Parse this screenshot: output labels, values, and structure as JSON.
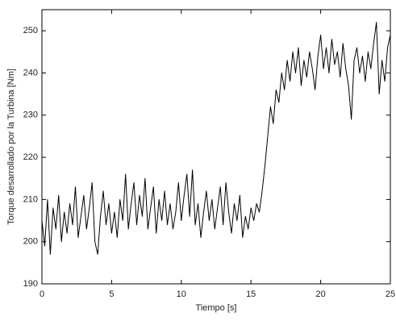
{
  "chart_data": {
    "type": "line",
    "xlabel": "Tiempo [s]",
    "ylabel": "Torque desarrollado por la Turbina [Nm]",
    "x": [
      0,
      0.2,
      0.4,
      0.6,
      0.8,
      1,
      1.2,
      1.4,
      1.6,
      1.8,
      2,
      2.2,
      2.4,
      2.6,
      2.8,
      3,
      3.2,
      3.4,
      3.6,
      3.8,
      4,
      4.2,
      4.4,
      4.6,
      4.8,
      5,
      5.2,
      5.4,
      5.6,
      5.8,
      6,
      6.2,
      6.4,
      6.6,
      6.8,
      7,
      7.2,
      7.4,
      7.6,
      7.8,
      8,
      8.2,
      8.4,
      8.6,
      8.8,
      9,
      9.2,
      9.4,
      9.6,
      9.8,
      10,
      10.2,
      10.4,
      10.6,
      10.8,
      11,
      11.2,
      11.4,
      11.6,
      11.8,
      12,
      12.2,
      12.4,
      12.6,
      12.8,
      13,
      13.2,
      13.4,
      13.6,
      13.8,
      14,
      14.2,
      14.4,
      14.6,
      14.8,
      15,
      15.2,
      15.4,
      15.6,
      15.8,
      16,
      16.2,
      16.4,
      16.6,
      16.8,
      17,
      17.2,
      17.4,
      17.6,
      17.8,
      18,
      18.2,
      18.4,
      18.6,
      18.8,
      19,
      19.2,
      19.4,
      19.6,
      19.8,
      20,
      20.2,
      20.4,
      20.6,
      20.8,
      21,
      21.2,
      21.4,
      21.6,
      21.8,
      22,
      22.2,
      22.4,
      22.6,
      22.8,
      23,
      23.2,
      23.4,
      23.6,
      23.8,
      24,
      24.2,
      24.4,
      24.6,
      24.8,
      25
    ],
    "series": [
      {
        "color": "#000000",
        "values": [
          205,
          199,
          210,
          197,
          208,
          203,
          211,
          200,
          207,
          202,
          209,
          204,
          213,
          201,
          206,
          211,
          203,
          208,
          214,
          200,
          197,
          206,
          212,
          204,
          209,
          202,
          207,
          201,
          210,
          205,
          216,
          203,
          209,
          214,
          204,
          211,
          206,
          215,
          203,
          208,
          213,
          202,
          210,
          205,
          212,
          204,
          209,
          203,
          207,
          214,
          205,
          211,
          216,
          206,
          217,
          204,
          209,
          201,
          207,
          212,
          205,
          210,
          203,
          208,
          213,
          204,
          214,
          207,
          202,
          209,
          205,
          211,
          201,
          206,
          203,
          208,
          205,
          209,
          207,
          212,
          218,
          225,
          232,
          228,
          236,
          233,
          240,
          236,
          243,
          238,
          245,
          240,
          246,
          237,
          243,
          239,
          245,
          241,
          236,
          244,
          249,
          241,
          246,
          240,
          248,
          242,
          245,
          239,
          247,
          241,
          237,
          229,
          243,
          246,
          240,
          244,
          238,
          245,
          241,
          247,
          252,
          235,
          243,
          238,
          246,
          249
        ]
      }
    ],
    "xlim": [
      0,
      25
    ],
    "xticks": [
      0,
      5,
      10,
      15,
      20,
      25
    ],
    "ylim": [
      190,
      255
    ],
    "yticks": [
      190,
      200,
      210,
      220,
      230,
      240,
      250
    ],
    "grid": false
  }
}
